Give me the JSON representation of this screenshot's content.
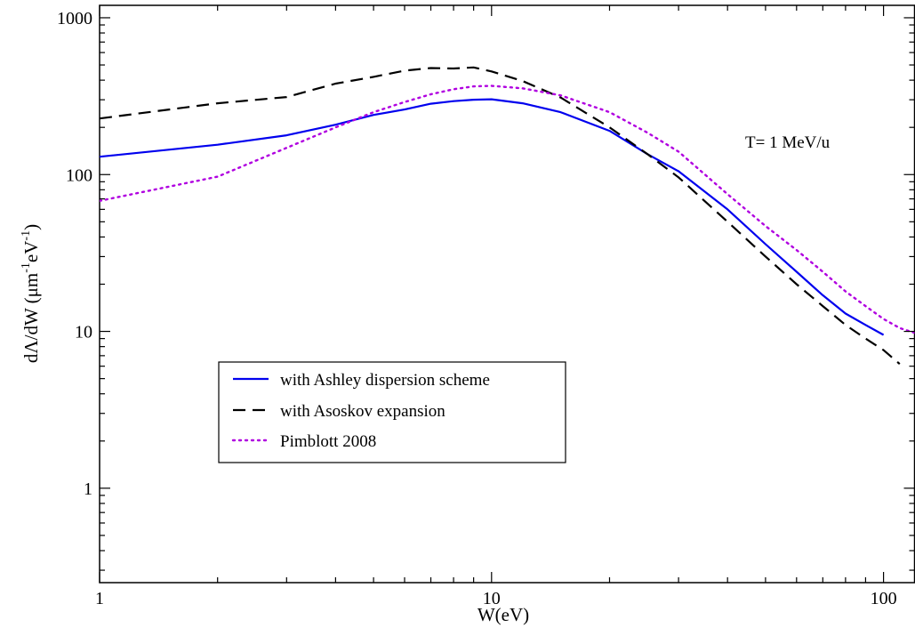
{
  "chart_data": {
    "type": "line",
    "xlabel": "W(eV)",
    "ylabel": "dΛ/dW  (μm-1eV-1)",
    "ylabel_parts": {
      "main": "dΛ/dW  (μm",
      "sup1": "-1",
      "mid": "eV",
      "sup2": "-1",
      "end": ")"
    },
    "xscale": "log",
    "yscale": "log",
    "xlim": [
      1,
      120
    ],
    "ylim": [
      0.25,
      1200
    ],
    "x_tick_labels": [
      {
        "value": 1,
        "label": "1"
      },
      {
        "value": 10,
        "label": "10"
      },
      {
        "value": 100,
        "label": "100"
      }
    ],
    "y_tick_labels": [
      {
        "value": 1,
        "label": "1"
      },
      {
        "value": 10,
        "label": "10"
      },
      {
        "value": 100,
        "label": "100"
      },
      {
        "value": 1000,
        "label": "1000"
      }
    ],
    "annotation": "T= 1 MeV/u",
    "grid": false,
    "legend_position": "lower-left",
    "series": [
      {
        "name": "with Ashley dispersion scheme",
        "color": "#0000ee",
        "style": "solid",
        "x": [
          1,
          2,
          3,
          4,
          5,
          6,
          7,
          8,
          9,
          10,
          12,
          15,
          20,
          25,
          30,
          40,
          50,
          60,
          70,
          80,
          90,
          100
        ],
        "y": [
          130,
          155,
          178,
          208,
          240,
          260,
          283,
          294,
          300,
          302,
          285,
          250,
          190,
          135,
          105,
          60,
          36,
          24,
          17,
          13,
          11,
          9.5
        ]
      },
      {
        "name": "with Asoskov expansion",
        "color": "#000000",
        "style": "dashed",
        "x": [
          1,
          2,
          3,
          4,
          5,
          6,
          7,
          8,
          9,
          10,
          12,
          15,
          20,
          25,
          30,
          40,
          50,
          60,
          70,
          80,
          90,
          100,
          110
        ],
        "y": [
          228,
          285,
          312,
          380,
          420,
          460,
          478,
          475,
          482,
          455,
          395,
          310,
          200,
          135,
          96,
          50,
          30,
          20,
          14.5,
          11,
          9,
          7.6,
          6.2
        ]
      },
      {
        "name": "Pimblott 2008",
        "color": "#b000e0",
        "style": "dotted",
        "x": [
          1,
          2,
          3,
          4,
          5,
          6,
          7,
          8,
          9,
          10,
          12,
          15,
          20,
          25,
          30,
          40,
          50,
          60,
          70,
          80,
          90,
          100,
          110,
          120
        ],
        "y": [
          68,
          97,
          148,
          200,
          250,
          290,
          325,
          350,
          365,
          368,
          355,
          320,
          250,
          185,
          140,
          75,
          47,
          33,
          24,
          18,
          14.5,
          12,
          10.5,
          9.8
        ]
      }
    ]
  }
}
